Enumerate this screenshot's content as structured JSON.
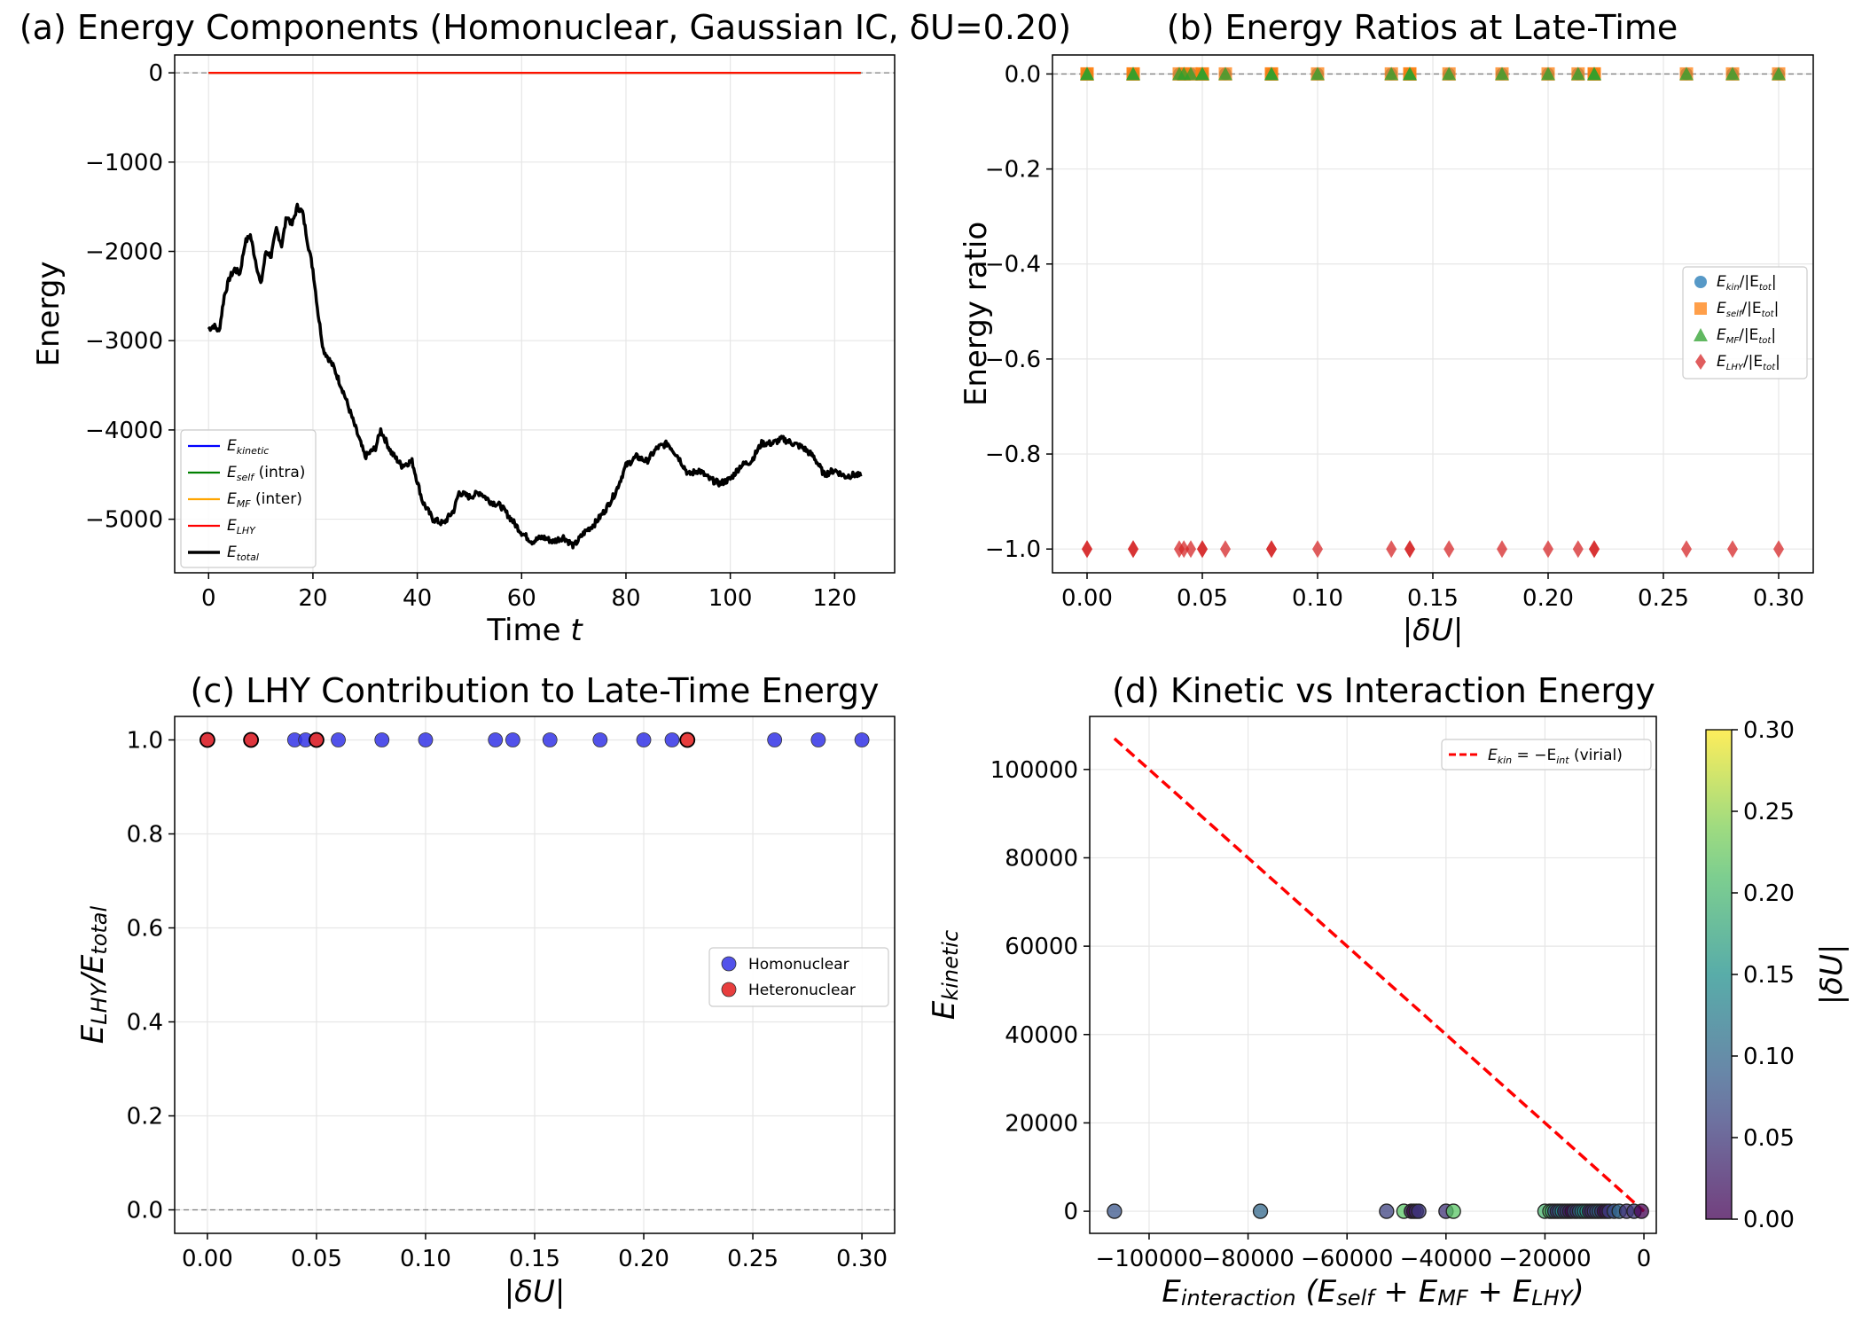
{
  "colors": {
    "kinetic": "#0000ff",
    "self": "#008000",
    "mf": "#ffa500",
    "lhy": "#ff0000",
    "total": "#000000",
    "scatter_kin": "#1f77b4",
    "scatter_self": "#ff7f0e",
    "scatter_mf": "#2ca02c",
    "scatter_lhy": "#d62728",
    "homonuclear": "#3434e6",
    "heteronuclear": "#e63434",
    "virial": "#ff0000",
    "grid": "#e6e6e6",
    "refline": "#808080"
  },
  "chart_data": [
    {
      "id": "a",
      "type": "line",
      "title": "(a) Energy Components (Homonuclear, Gaussian IC, δU=0.20)",
      "xlabel": "Time t",
      "ylabel": "Energy",
      "xlim": [
        -6.5,
        131.5
      ],
      "ylim": [
        -5600,
        200
      ],
      "xticks": [
        0,
        20,
        40,
        60,
        80,
        100,
        120
      ],
      "yticks": [
        0,
        -1000,
        -2000,
        -3000,
        -4000,
        -5000
      ],
      "ytick_labels": [
        "0",
        "−1000",
        "−2000",
        "−3000",
        "−4000",
        "−5000"
      ],
      "legend_position": "lower-left",
      "series": [
        {
          "name": "E_kinetic",
          "legend": [
            "E",
            "kinetic",
            ""
          ],
          "values": "≈0 for all t"
        },
        {
          "name": "E_self (intra)",
          "legend": [
            "E",
            "self",
            " (intra)"
          ],
          "values": "≈0 for all t"
        },
        {
          "name": "E_MF (inter)",
          "legend": [
            "E",
            "MF",
            " (inter)"
          ],
          "values": "≈0 for all t"
        },
        {
          "name": "E_LHY",
          "legend": [
            "E",
            "LHY",
            ""
          ],
          "values": "≈0 for all t"
        },
        {
          "name": "E_total",
          "legend": [
            "E",
            "total",
            ""
          ],
          "x": [
            0,
            1,
            2,
            3,
            4,
            5,
            6,
            7,
            8,
            9,
            10,
            11,
            12,
            13,
            14,
            15,
            16,
            17,
            18,
            19,
            20,
            21,
            22,
            24,
            26,
            28,
            30,
            32,
            33,
            35,
            37,
            39,
            41,
            43,
            45,
            47,
            48,
            50,
            52,
            54,
            56,
            58,
            60,
            62,
            64,
            66,
            68,
            70,
            72,
            74,
            76,
            78,
            80,
            82,
            84,
            86,
            88,
            90,
            92,
            94,
            96,
            98,
            100,
            102,
            104,
            106,
            108,
            110,
            112,
            114,
            116,
            118,
            120,
            122,
            124,
            125
          ],
          "y": [
            -2870,
            -2830,
            -2900,
            -2500,
            -2300,
            -2200,
            -2250,
            -1900,
            -1820,
            -2100,
            -2380,
            -2000,
            -2050,
            -1750,
            -1930,
            -1600,
            -1700,
            -1500,
            -1560,
            -1900,
            -2200,
            -2700,
            -3100,
            -3300,
            -3600,
            -3950,
            -4300,
            -4200,
            -4000,
            -4250,
            -4400,
            -4350,
            -4800,
            -5000,
            -5050,
            -4900,
            -4700,
            -4750,
            -4700,
            -4800,
            -4850,
            -5000,
            -5150,
            -5250,
            -5200,
            -5250,
            -5200,
            -5300,
            -5150,
            -5050,
            -4900,
            -4700,
            -4400,
            -4300,
            -4350,
            -4200,
            -4150,
            -4300,
            -4500,
            -4450,
            -4550,
            -4600,
            -4550,
            -4400,
            -4350,
            -4150,
            -4150,
            -4100,
            -4150,
            -4200,
            -4300,
            -4500,
            -4450,
            -4520,
            -4500,
            -4520
          ]
        }
      ]
    },
    {
      "id": "b",
      "type": "scatter",
      "title": "(b) Energy Ratios at Late-Time",
      "xlabel": "|δU|",
      "ylabel": "Energy ratio",
      "xlim": [
        -0.015,
        0.315
      ],
      "ylim": [
        -1.05,
        0.04
      ],
      "xticks": [
        0.0,
        0.05,
        0.1,
        0.15,
        0.2,
        0.25,
        0.3
      ],
      "xtick_labels": [
        "0.00",
        "0.05",
        "0.10",
        "0.15",
        "0.20",
        "0.25",
        "0.30"
      ],
      "yticks": [
        0.0,
        -0.2,
        -0.4,
        -0.6,
        -0.8,
        -1.0
      ],
      "ytick_labels": [
        "0.0",
        "−0.2",
        "−0.4",
        "−0.6",
        "−0.8",
        "−1.0"
      ],
      "hline": 0.0,
      "legend_position": "center-right",
      "x": [
        0.0,
        0.0,
        0.02,
        0.02,
        0.04,
        0.042,
        0.045,
        0.05,
        0.05,
        0.06,
        0.08,
        0.08,
        0.1,
        0.132,
        0.14,
        0.14,
        0.157,
        0.18,
        0.2,
        0.213,
        0.22,
        0.22,
        0.26,
        0.28,
        0.3
      ],
      "series": [
        {
          "name": "E_kin/|E_tot|",
          "legend": [
            "E",
            "kin",
            "/|E",
            "tot",
            "|"
          ],
          "marker": "circle",
          "value": 0.0
        },
        {
          "name": "E_self/|E_tot|",
          "legend": [
            "E",
            "self",
            "/|E",
            "tot",
            "|"
          ],
          "marker": "square",
          "value": 0.0
        },
        {
          "name": "E_MF/|E_tot|",
          "legend": [
            "E",
            "MF",
            "/|E",
            "tot",
            "|"
          ],
          "marker": "triangle",
          "value": 0.0
        },
        {
          "name": "E_LHY/|E_tot|",
          "legend": [
            "E",
            "LHY",
            "/|E",
            "tot",
            "|"
          ],
          "marker": "diamond",
          "value": -1.0
        }
      ]
    },
    {
      "id": "c",
      "type": "scatter",
      "title": "(c) LHY Contribution to Late-Time Energy",
      "xlabel": "|δU|",
      "ylabel": "E_LHY/E_total",
      "xlim": [
        -0.015,
        0.315
      ],
      "ylim": [
        -0.05,
        1.05
      ],
      "xticks": [
        0.0,
        0.05,
        0.1,
        0.15,
        0.2,
        0.25,
        0.3
      ],
      "xtick_labels": [
        "0.00",
        "0.05",
        "0.10",
        "0.15",
        "0.20",
        "0.25",
        "0.30"
      ],
      "yticks": [
        0.0,
        0.2,
        0.4,
        0.6,
        0.8,
        1.0
      ],
      "ytick_labels": [
        "0.0",
        "0.2",
        "0.4",
        "0.6",
        "0.8",
        "1.0"
      ],
      "hline": 0.0,
      "legend_position": "center-right",
      "series": [
        {
          "name": "Homonuclear",
          "x": [
            0.0,
            0.02,
            0.04,
            0.045,
            0.05,
            0.06,
            0.08,
            0.1,
            0.132,
            0.14,
            0.157,
            0.18,
            0.2,
            0.213,
            0.26,
            0.28,
            0.3
          ],
          "y": [
            1,
            1,
            1,
            1,
            1,
            1,
            1,
            1,
            1,
            1,
            1,
            1,
            1,
            1,
            1,
            1,
            1
          ]
        },
        {
          "name": "Heteronuclear",
          "x": [
            0.0,
            0.02,
            0.05,
            0.22
          ],
          "y": [
            1,
            1,
            1,
            1
          ]
        }
      ]
    },
    {
      "id": "d",
      "type": "scatter",
      "title": "(d) Kinetic vs Interaction Energy",
      "xlabel": "E_interaction (E_self + E_MF + E_LHY)",
      "ylabel": "E_kinetic",
      "xlim": [
        -112000,
        2500
      ],
      "ylim": [
        -5000,
        112000
      ],
      "xticks": [
        -100000,
        -80000,
        -60000,
        -40000,
        -20000,
        0
      ],
      "xtick_labels": [
        "−100000",
        "−80000",
        "−60000",
        "−40000",
        "−20000",
        "0"
      ],
      "yticks": [
        0,
        20000,
        40000,
        60000,
        80000,
        100000
      ],
      "ytick_labels": [
        "0",
        "20000",
        "40000",
        "60000",
        "80000",
        "100000"
      ],
      "legend_position": "top-right",
      "virial_line": {
        "label": "E_kin = −E_int (virial)",
        "legend": [
          "E",
          "kin",
          " = −E",
          "int",
          " (virial)"
        ],
        "x": [
          -107000,
          0
        ],
        "y": [
          107000,
          0
        ]
      },
      "points": {
        "x": [
          -107000,
          -77500,
          -52000,
          -48500,
          -47000,
          -46500,
          -46000,
          -45500,
          -40000,
          -38500,
          -20000,
          -19000,
          -18500,
          -18000,
          -17500,
          -17000,
          -16500,
          -16000,
          -15500,
          -15000,
          -14500,
          -14000,
          -13500,
          -13000,
          -12500,
          -12000,
          -11500,
          -11000,
          -10500,
          -10000,
          -9500,
          -9000,
          -8500,
          -8000,
          -7500,
          -7000,
          -6000,
          -5000,
          -3500,
          -2000,
          -500
        ],
        "y": [
          0,
          0,
          0,
          0,
          0,
          0,
          0,
          0,
          0,
          0,
          0,
          0,
          0,
          0,
          0,
          0,
          0,
          0,
          0,
          0,
          0,
          0,
          0,
          0,
          0,
          0,
          0,
          0,
          0,
          0,
          0,
          0,
          0,
          0,
          0,
          0,
          0,
          0,
          0,
          0,
          0
        ],
        "dU": [
          0.08,
          0.1,
          0.06,
          0.22,
          0.02,
          0.0,
          0.04,
          0.05,
          0.045,
          0.22,
          0.2,
          0.22,
          0.18,
          0.08,
          0.05,
          0.1,
          0.14,
          0.04,
          0.06,
          0.02,
          0.0,
          0.08,
          0.05,
          0.1,
          0.132,
          0.14,
          0.157,
          0.02,
          0.04,
          0.06,
          0.08,
          0.1,
          0.05,
          0.0,
          0.02,
          0.06,
          0.08,
          0.1,
          0.045,
          0.05,
          0.0
        ]
      },
      "colorbar": {
        "label": "|δU|",
        "min": 0.0,
        "max": 0.3,
        "ticks": [
          0.0,
          0.05,
          0.1,
          0.15,
          0.2,
          0.25,
          0.3
        ],
        "tick_labels": [
          "0.00",
          "0.05",
          "0.10",
          "0.15",
          "0.20",
          "0.25",
          "0.30"
        ]
      }
    }
  ]
}
